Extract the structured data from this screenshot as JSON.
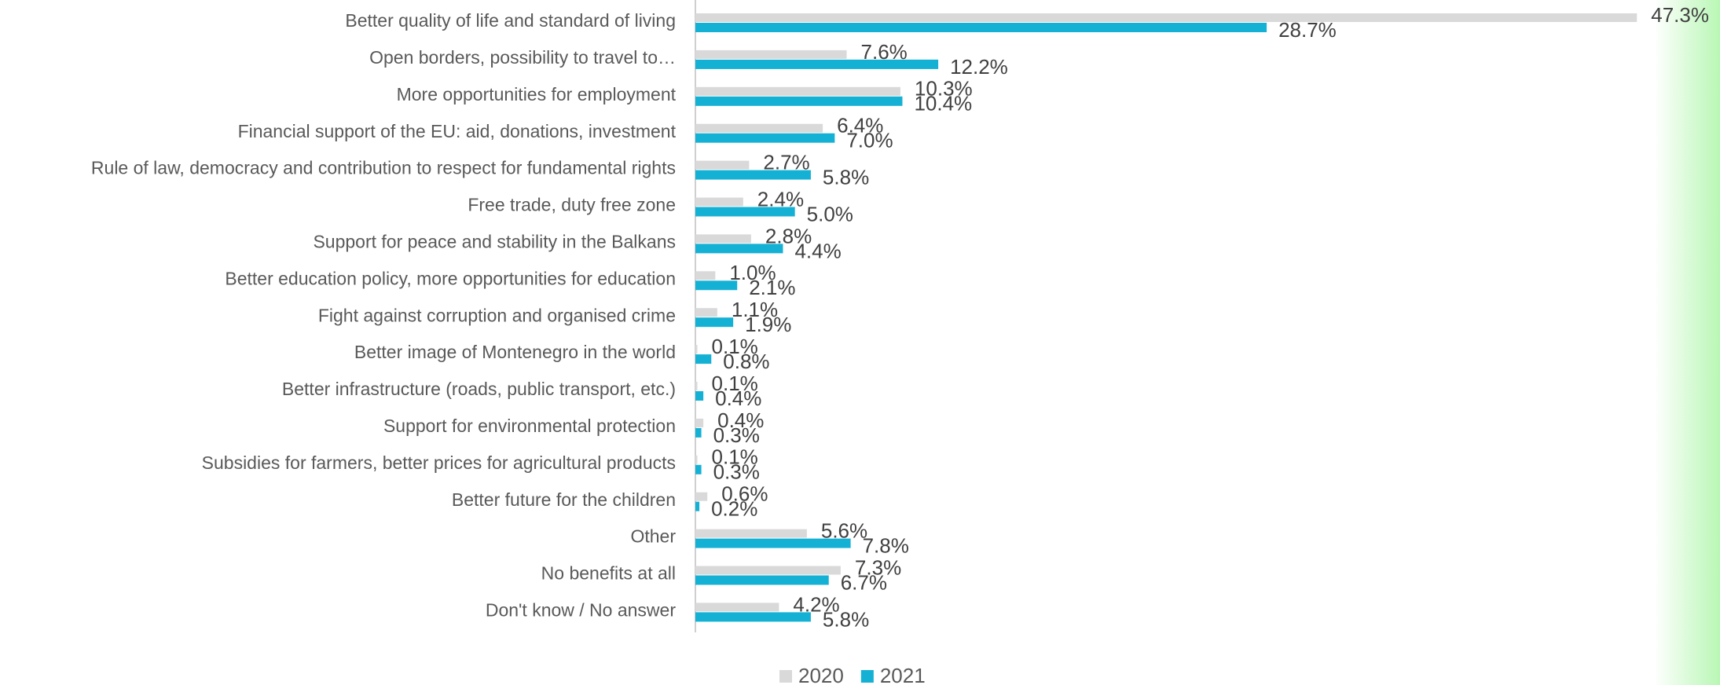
{
  "chart_data": {
    "type": "bar",
    "orientation": "horizontal",
    "categories": [
      "Better quality of life and standard of living",
      "Open borders, possibility to travel to…",
      "More opportunities for employment",
      "Financial support of the EU: aid, donations, investment",
      "Rule of law, democracy and contribution to respect for fundamental rights",
      "Free trade, duty free zone",
      "Support for peace and stability in the Balkans",
      "Better education policy, more opportunities for education",
      "Fight against corruption and organised crime",
      "Better image of Montenegro in the world",
      "Better infrastructure (roads, public transport, etc.)",
      "Support for environmental protection",
      "Subsidies for farmers, better prices for agricultural products",
      "Better future for the children",
      "Other",
      "No benefits at all",
      "Don't know / No answer"
    ],
    "series": [
      {
        "name": "2020",
        "color": "#d9d9d9",
        "values": [
          47.3,
          7.6,
          10.3,
          6.4,
          2.7,
          2.4,
          2.8,
          1.0,
          1.1,
          0.1,
          0.1,
          0.4,
          0.1,
          0.6,
          5.6,
          7.3,
          4.2
        ],
        "value_labels": [
          "47.3%",
          "7.6%",
          "10.3%",
          "6.4%",
          "2.7%",
          "2.4%",
          "2.8%",
          "1.0%",
          "1.1%",
          "0.1%",
          "0.1%",
          "0.4%",
          "0.1%",
          "0.6%",
          "5.6%",
          "7.3%",
          "4.2%"
        ]
      },
      {
        "name": "2021",
        "color": "#15b1d4",
        "values": [
          28.7,
          12.2,
          10.4,
          7.0,
          5.8,
          5.0,
          4.4,
          2.1,
          1.9,
          0.8,
          0.4,
          0.3,
          0.3,
          0.2,
          7.8,
          6.7,
          5.8
        ],
        "value_labels": [
          "28.7%",
          "12.2%",
          "10.4%",
          "7.0%",
          "5.8%",
          "5.0%",
          "4.4%",
          "2.1%",
          "1.9%",
          "0.8%",
          "0.4%",
          "0.3%",
          "0.3%",
          "0.2%",
          "7.8%",
          "6.7%",
          "5.8%"
        ]
      }
    ],
    "xlim": [
      0,
      48
    ],
    "legend": "bottom"
  }
}
